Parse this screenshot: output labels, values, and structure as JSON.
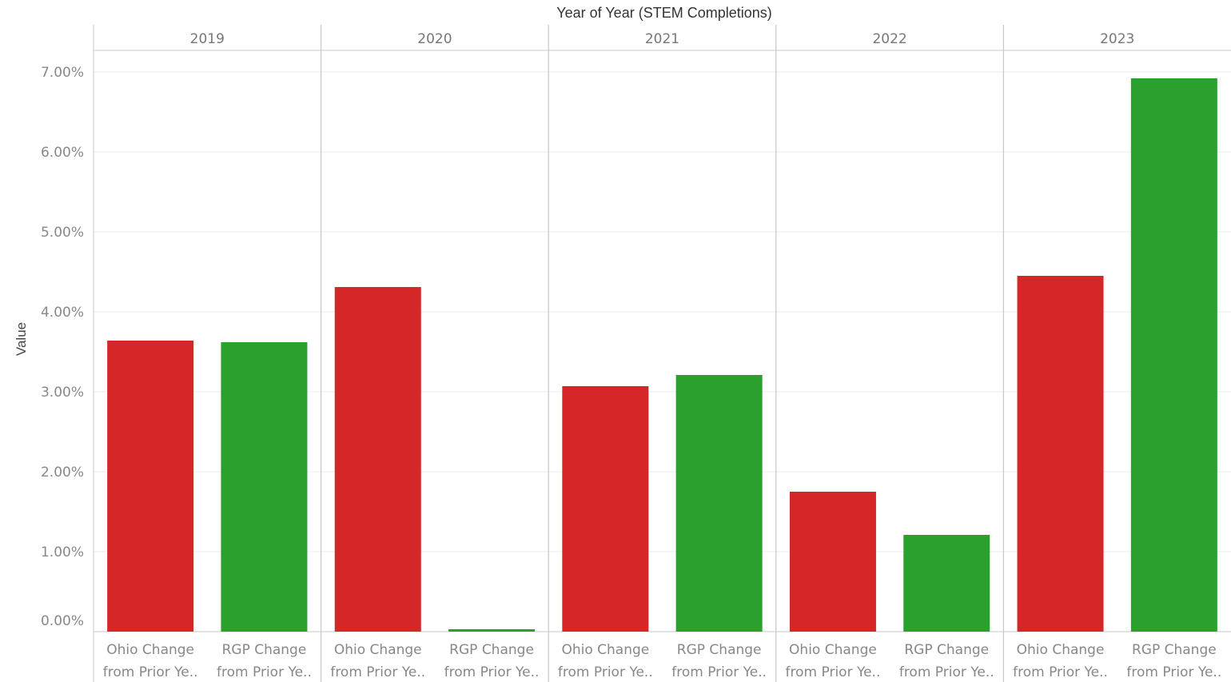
{
  "chart_data": {
    "type": "bar",
    "title": "Year of Year (STEM Completions)",
    "ylabel": "Value",
    "xlabel": "",
    "ylim": [
      0,
      7.3
    ],
    "y_ticks": [
      "0.00%",
      "1.00%",
      "2.00%",
      "3.00%",
      "4.00%",
      "5.00%",
      "6.00%",
      "7.00%"
    ],
    "y_tick_values": [
      0,
      1,
      2,
      3,
      4,
      5,
      6,
      7
    ],
    "grid": true,
    "legend": "none",
    "column_headers": [
      "2019",
      "2020",
      "2021",
      "2022",
      "2023"
    ],
    "category_lines": [
      "Ohio Change",
      "from Prior Ye..",
      "RGP Change",
      "from Prior Ye.."
    ],
    "categories": [
      "Ohio Change from Prior Ye..",
      "RGP Change from Prior Ye.."
    ],
    "colors": [
      "#d62728",
      "#2ca02c"
    ],
    "groups": [
      {
        "year": "2019",
        "values": [
          3.64,
          3.62
        ]
      },
      {
        "year": "2020",
        "values": [
          4.31,
          0.03
        ]
      },
      {
        "year": "2021",
        "values": [
          3.07,
          3.21
        ]
      },
      {
        "year": "2022",
        "values": [
          1.75,
          1.21
        ]
      },
      {
        "year": "2023",
        "values": [
          4.45,
          6.92
        ]
      }
    ]
  }
}
